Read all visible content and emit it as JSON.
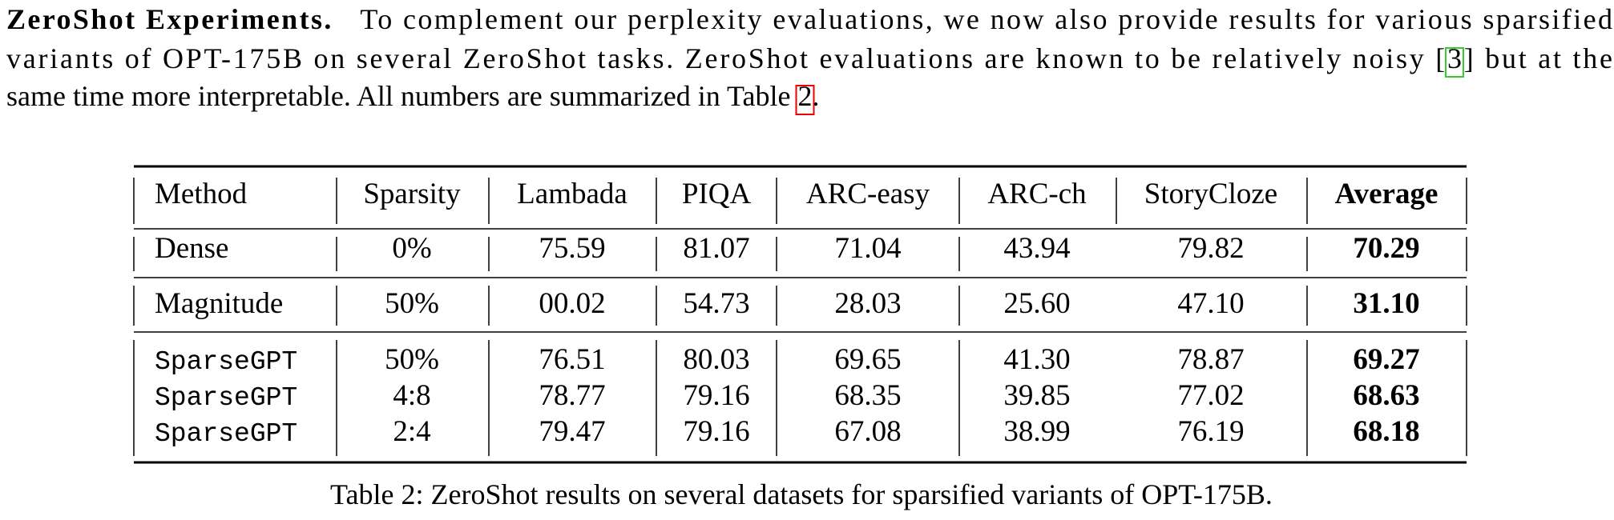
{
  "paragraph": {
    "runs": [
      "ZeroShot Experiments.",
      "   To complement our perplexity evaluations, we now also provide results for various sparsified",
      "variants of OPT-175B on several ZeroShot tasks. ZeroShot evaluations are known to be relatively noisy [",
      "3",
      "] but at the",
      "same time more interpretable. All numbers are summarized in Table ",
      "2",
      "."
    ]
  },
  "table": {
    "header": [
      "Method",
      "Sparsity",
      "Lambada",
      "PIQA",
      "ARC-easy",
      "ARC-ch",
      "StoryCloze",
      "Average"
    ],
    "groups": [
      [
        [
          "Dense",
          "0%",
          "75.59",
          "81.07",
          "71.04",
          "43.94",
          "79.82",
          "70.29"
        ]
      ],
      [
        [
          "Magnitude",
          "50%",
          "00.02",
          "54.73",
          "28.03",
          "25.60",
          "47.10",
          "31.10"
        ]
      ],
      [
        [
          "SparseGPT",
          "50%",
          "76.51",
          "80.03",
          "69.65",
          "41.30",
          "78.87",
          "69.27"
        ],
        [
          "SparseGPT",
          "4:8",
          "78.77",
          "79.16",
          "68.35",
          "39.85",
          "77.02",
          "68.63"
        ],
        [
          "SparseGPT",
          "2:4",
          "79.47",
          "79.16",
          "67.08",
          "38.99",
          "76.19",
          "68.18"
        ]
      ]
    ],
    "caption": "Table 2: ZeroShot results on several datasets for sparsified variants of OPT-175B."
  }
}
